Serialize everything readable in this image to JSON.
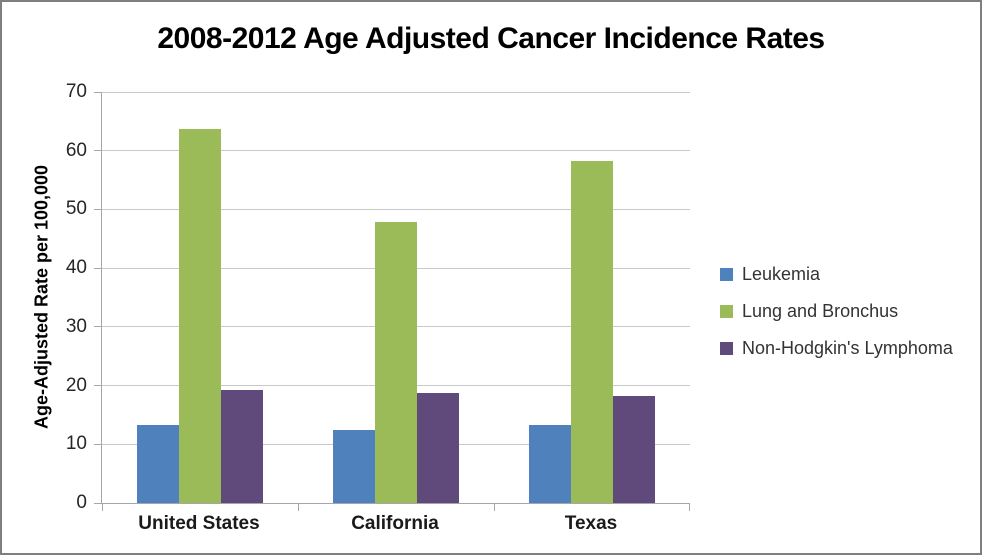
{
  "window": {
    "background_color": "#FFFFFF",
    "border_color": "#7F7F7F"
  },
  "chart_data": {
    "type": "bar",
    "title": "2008-2012 Age Adjusted Cancer Incidence Rates",
    "xlabel": "",
    "ylabel": "Age-Adjusted Rate per 100,000",
    "categories": [
      "United States",
      "California",
      "Texas"
    ],
    "series": [
      {
        "name": "Leukemia",
        "color": "#4F81BD",
        "values": [
          13.2,
          12.5,
          13.3
        ]
      },
      {
        "name": "Lung and Bronchus",
        "color": "#9BBB59",
        "values": [
          63.7,
          47.9,
          58.3
        ]
      },
      {
        "name": "Non-Hodgkin's Lymphoma",
        "color": "#604A7B",
        "values": [
          19.3,
          18.7,
          18.2
        ]
      }
    ],
    "ylim": [
      0,
      70
    ],
    "yticks": [
      0,
      10,
      20,
      30,
      40,
      50,
      60,
      70
    ],
    "grid": true,
    "legend_position": "right",
    "gridline_color": "#C9C9C9",
    "axis_color": "#A6A6A6"
  }
}
